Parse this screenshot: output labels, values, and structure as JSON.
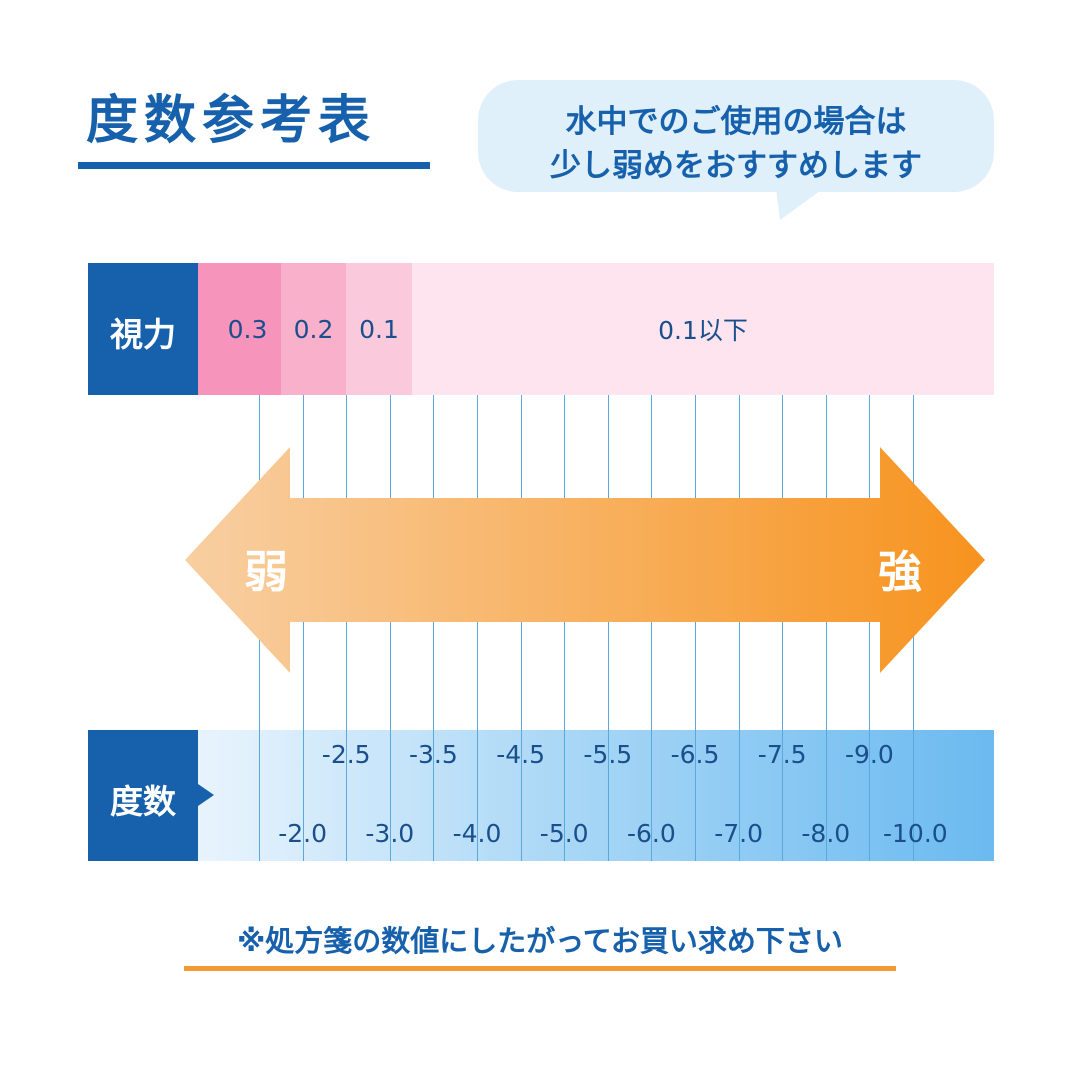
{
  "title": "度数参考表",
  "bubble": {
    "line1": "水中でのご使用の場合は",
    "line2": "少し弱めをおすすめします"
  },
  "vision": {
    "label": "視力",
    "cells": [
      {
        "text": "0.3",
        "color": "#f794bb"
      },
      {
        "text": "0.2",
        "color": "#f9b1cb"
      },
      {
        "text": "0.1",
        "color": "#fbc9dc"
      },
      {
        "text": "0.1以下",
        "color": "#fde4ee"
      }
    ]
  },
  "strength": {
    "weak": "弱",
    "strong": "強",
    "color_weak": "#f8cfa2",
    "color_strong": "#f7931e"
  },
  "power": {
    "label": "度数",
    "top_values": [
      "-2.5",
      "-3.5",
      "-4.5",
      "-5.5",
      "-6.5",
      "-7.5",
      "-9.0"
    ],
    "bottom_values": [
      "-2.0",
      "-3.0",
      "-4.0",
      "-5.0",
      "-6.0",
      "-7.0",
      "-8.0",
      "-10.0"
    ]
  },
  "footer": {
    "note": "※処方箋の数値にしたがってお買い求め下さい"
  },
  "colors": {
    "brand_blue": "#1660ac",
    "accent_orange": "#f29a33",
    "bubble_bg": "#dff0fa"
  }
}
